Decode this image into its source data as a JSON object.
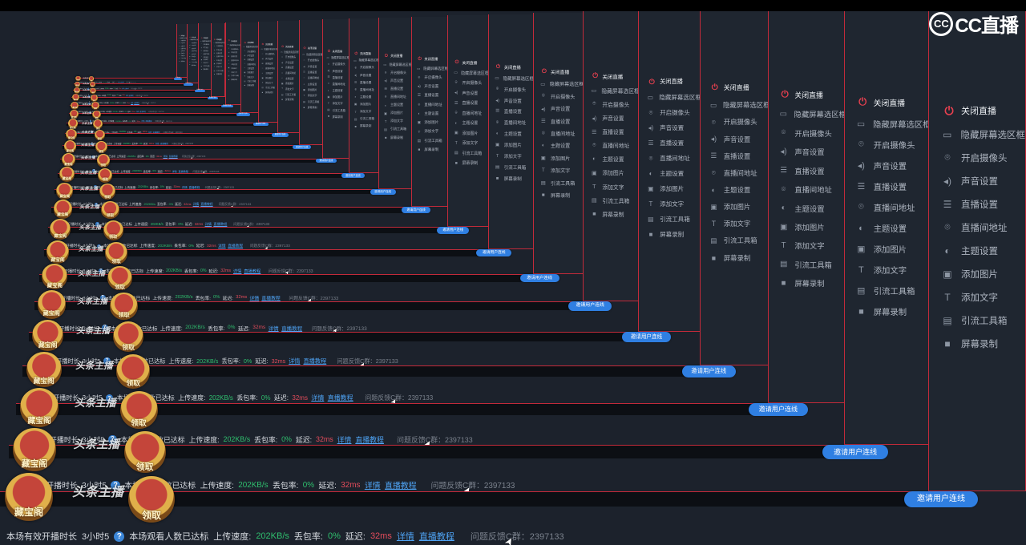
{
  "app": {
    "brand": "CC直播"
  },
  "menu": {
    "close_live": "关闭直播",
    "items": [
      {
        "icon": "monitor-icon",
        "label": "隐藏屏幕选区框"
      },
      {
        "icon": "location-pin-icon",
        "label": "开启摄像头"
      },
      {
        "icon": "speaker-icon",
        "label": "声音设置"
      },
      {
        "icon": "sliders-icon",
        "label": "直播设置"
      },
      {
        "icon": "location-pin-icon",
        "label": "直播间地址"
      },
      {
        "icon": "palette-icon",
        "label": "主题设置"
      },
      {
        "icon": "image-icon",
        "label": "添加图片"
      },
      {
        "icon": "text-t-icon",
        "label": "添加文字"
      },
      {
        "icon": "toolbox-icon",
        "label": "引流工具箱"
      },
      {
        "icon": "video-camera-icon",
        "label": "屏幕录制"
      }
    ]
  },
  "actions": {
    "connect_button": "邀请用户连线"
  },
  "status": {
    "duration_prefix": "本场有效开播时长",
    "duration_value": "3小时5",
    "viewers": "本场观看人数已达标",
    "upload_label": "上传速度:",
    "upload_value": "202KB/s",
    "loss_label": "丢包率:",
    "loss_value": "0%",
    "latency_label": "延迟:",
    "latency_value": "32ms",
    "details_link": "详情",
    "tutorial_link": "直播教程",
    "feedback": "问题反馈C群：2397133"
  },
  "badges": {
    "treasure_label": "藏宝阁",
    "claim_label": "领取",
    "logo_text": "头条主播"
  },
  "colors": {
    "accent_blue": "#2f7fe2",
    "danger_red": "#e8404f",
    "ok_green": "#2fbf6e",
    "panel_bg": "#1f2630",
    "border_red": "#c22a3a"
  }
}
